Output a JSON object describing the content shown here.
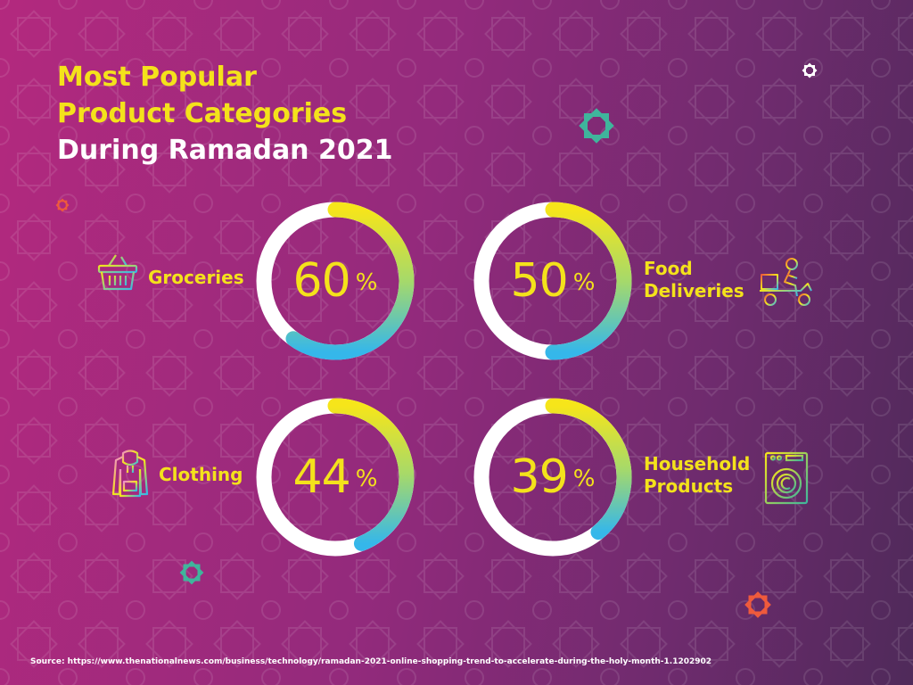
{
  "title": {
    "line1": "Most Popular",
    "line2": "Product Categories",
    "line3": "During Ramadan 2021"
  },
  "chart_data": {
    "type": "donut",
    "unit": "%",
    "categories": [
      "Groceries",
      "Food Deliveries",
      "Clothing",
      "Household Products"
    ],
    "values": [
      60,
      50,
      44,
      39
    ]
  },
  "labels": {
    "groceries": "Groceries",
    "food_line1": "Food",
    "food_line2": "Deliveries",
    "clothing": "Clothing",
    "household_line1": "Household",
    "household_line2": "Products"
  },
  "icons": [
    "basket-icon",
    "delivery-scooter-icon",
    "hoodie-icon",
    "washing-machine-icon"
  ],
  "colors": {
    "accent_yellow": "#f4e21b",
    "ring_base": "#ffffff",
    "arc_start": "#f6e51a",
    "arc_mid": "#a6d96a",
    "arc_end": "#35b7ea",
    "teal_star": "#3fb59c",
    "orange_star": "#ef5a3c"
  },
  "source": "Source: https://www.thenationalnews.com/business/technology/ramadan-2021-online-shopping-trend-to-accelerate-during-the-holy-month-1.1202902"
}
